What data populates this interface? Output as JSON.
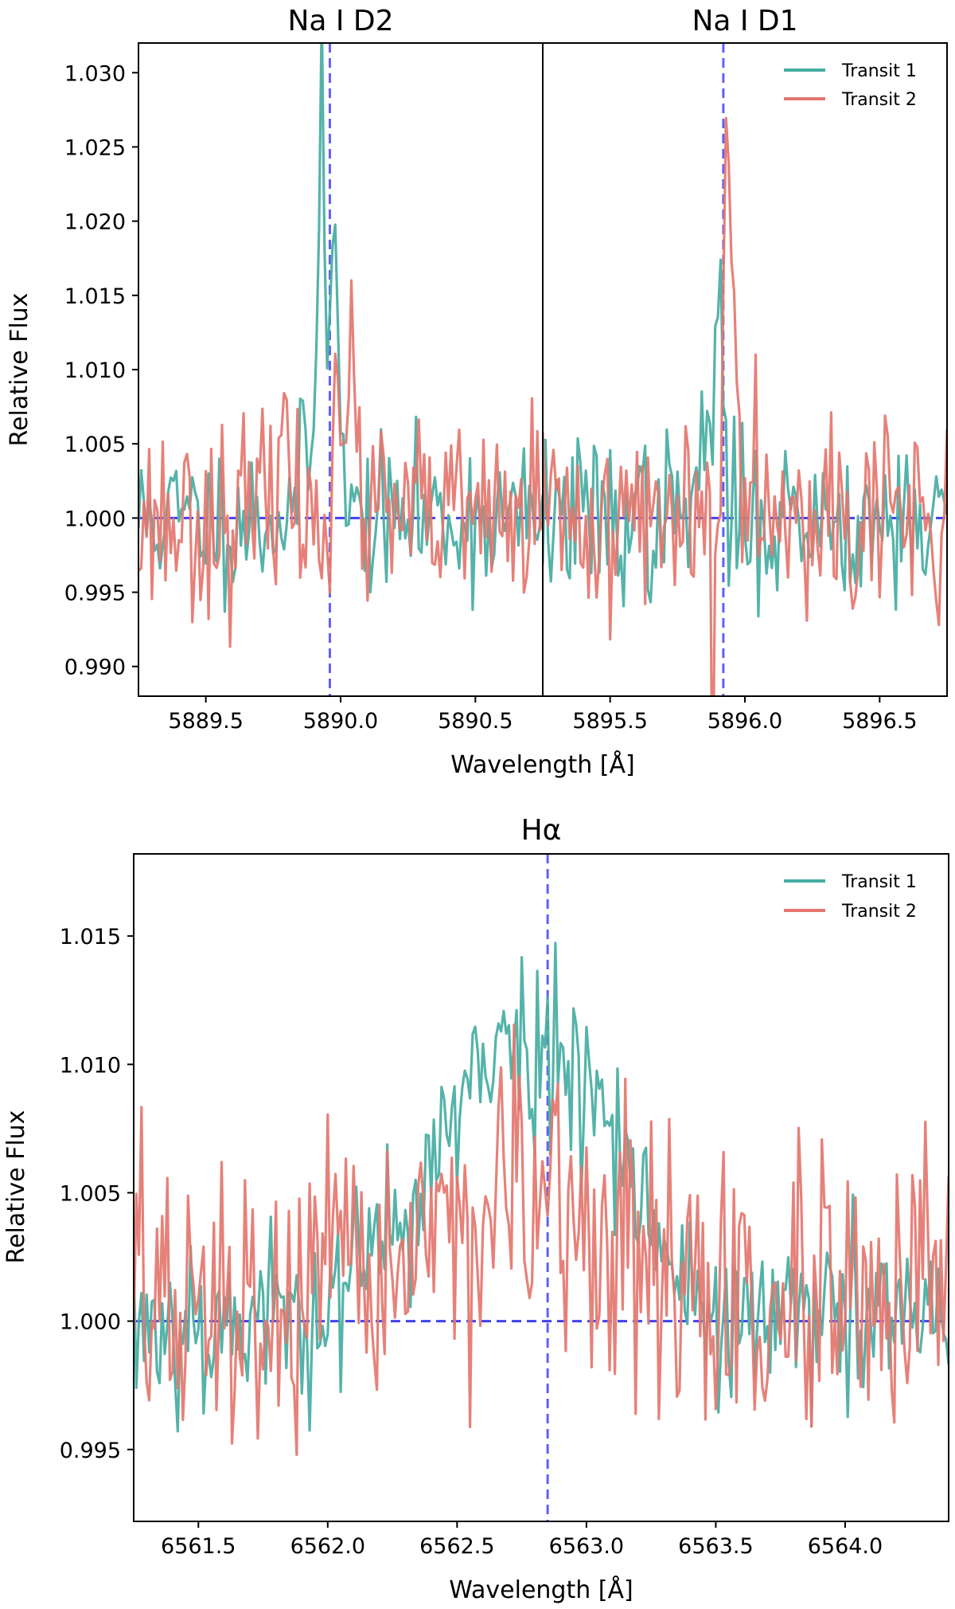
{
  "colors": {
    "transit1": "#45ADA2",
    "transit2": "#E4766E",
    "reference": "#4040F0",
    "reference_center": "#6060F8"
  },
  "chart_data": [
    {
      "id": "na_d2",
      "type": "line",
      "title": "Na I D2",
      "xlim": [
        5889.25,
        5890.75
      ],
      "ylim": [
        0.988,
        1.032
      ],
      "xticks": [
        5889.5,
        5890.0,
        5890.5
      ],
      "xtick_labels": [
        "5889.5",
        "5890.0",
        "5890.5"
      ],
      "yticks": [
        0.99,
        0.995,
        1.0,
        1.005,
        1.01,
        1.015,
        1.02,
        1.025,
        1.03
      ],
      "ytick_labels": [
        "0.990",
        "0.995",
        "1.000",
        "1.005",
        "1.010",
        "1.015",
        "1.020",
        "1.025",
        "1.030"
      ],
      "ylabel": "Relative Flux",
      "line_center": 5889.96,
      "baseline": 1.0,
      "series": [
        {
          "name": "Transit 1",
          "x_start": 5889.25,
          "x_step": 0.01,
          "seed": 11,
          "noise": 0.0025,
          "features": [
            [
              5889.93,
              0.026,
              0.01
            ],
            [
              5889.975,
              0.02,
              0.014
            ],
            [
              5889.92,
              0.006,
              0.05
            ]
          ]
        },
        {
          "name": "Transit 2",
          "x_start": 5889.25,
          "x_step": 0.01,
          "seed": 23,
          "noise": 0.0032,
          "features": [
            [
              5889.985,
              0.014,
              0.012
            ],
            [
              5890.04,
              0.008,
              0.02
            ],
            [
              5889.78,
              0.009,
              0.015
            ]
          ]
        }
      ]
    },
    {
      "id": "na_d1",
      "type": "line",
      "title": "Na I D1",
      "xlim": [
        5895.25,
        5896.75
      ],
      "ylim": [
        0.988,
        1.032
      ],
      "xticks": [
        5895.5,
        5896.0,
        5896.5
      ],
      "xtick_labels": [
        "5895.5",
        "5896.0",
        "5896.5"
      ],
      "xlabel": "Wavelength [Å]",
      "line_center": 5895.92,
      "baseline": 1.0,
      "legend": {
        "position": "top-right",
        "entries": [
          "Transit 1",
          "Transit 2"
        ]
      },
      "series": [
        {
          "name": "Transit 1",
          "x_start": 5895.25,
          "x_step": 0.01,
          "seed": 37,
          "noise": 0.0028,
          "features": [
            [
              5895.91,
              0.014,
              0.012
            ],
            [
              5895.86,
              0.006,
              0.03
            ]
          ]
        },
        {
          "name": "Transit 2",
          "x_start": 5895.25,
          "x_step": 0.01,
          "seed": 41,
          "noise": 0.0035,
          "features": [
            [
              5895.93,
              0.025,
              0.01
            ],
            [
              5895.96,
              0.018,
              0.012
            ],
            [
              5895.88,
              -0.012,
              0.006
            ],
            [
              5896.1,
              0.003,
              0.1
            ]
          ]
        }
      ]
    },
    {
      "id": "h_alpha",
      "type": "line",
      "title": "Hα",
      "xlim": [
        6561.25,
        6564.4
      ],
      "ylim": [
        0.9922,
        1.0182
      ],
      "xticks": [
        6561.5,
        6562.0,
        6562.5,
        6563.0,
        6563.5,
        6564.0
      ],
      "xtick_labels": [
        "6561.5",
        "6562.0",
        "6562.5",
        "6563.0",
        "6563.5",
        "6564.0"
      ],
      "yticks": [
        0.995,
        1.0,
        1.005,
        1.01,
        1.015
      ],
      "ytick_labels": [
        "0.995",
        "1.000",
        "1.005",
        "1.010",
        "1.015"
      ],
      "xlabel": "Wavelength [Å]",
      "ylabel": "Relative Flux",
      "line_center": 6562.85,
      "baseline": 1.0,
      "legend": {
        "position": "top-right",
        "entries": [
          "Transit 1",
          "Transit 2"
        ]
      },
      "series": [
        {
          "name": "Transit 1",
          "x_start": 6561.25,
          "x_step": 0.01,
          "seed": 53,
          "noise": 0.0018,
          "features": [
            [
              6562.7,
              0.0095,
              0.32
            ],
            [
              6563.05,
              0.004,
              0.15
            ],
            [
              6562.7,
              0.002,
              0.05
            ]
          ]
        },
        {
          "name": "Transit 2",
          "x_start": 6561.25,
          "x_step": 0.01,
          "seed": 67,
          "noise": 0.0028,
          "features": [
            [
              6562.6,
              0.004,
              0.35
            ],
            [
              6563.15,
              0.0015,
              0.25
            ],
            [
              6561.27,
              0.004,
              0.02
            ]
          ]
        }
      ]
    }
  ]
}
